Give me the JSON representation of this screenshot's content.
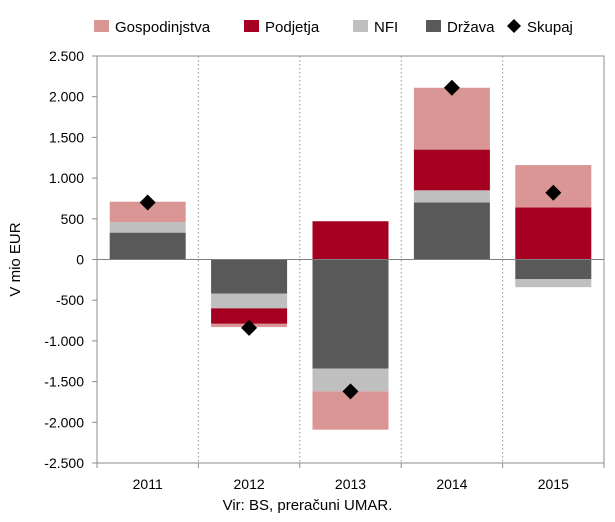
{
  "chart_data": {
    "type": "bar",
    "stacked": true,
    "categories": [
      "2011",
      "2012",
      "2013",
      "2014",
      "2015"
    ],
    "series": [
      {
        "name": "Država",
        "color": "#595959",
        "values": [
          330,
          -420,
          -1340,
          700,
          -240
        ]
      },
      {
        "name": "NFI",
        "color": "#bfbfbf",
        "values": [
          130,
          -180,
          -280,
          150,
          -100
        ]
      },
      {
        "name": "Podjetja",
        "color": "#a50021",
        "values": [
          0,
          -190,
          470,
          500,
          640
        ]
      },
      {
        "name": "Gospodinjstva",
        "color": "#da9694",
        "values": [
          250,
          -40,
          -470,
          760,
          520
        ]
      }
    ],
    "total": {
      "name": "Skupaj",
      "marker": "diamond",
      "color": "#000000",
      "values": [
        700,
        -840,
        -1620,
        2110,
        820
      ]
    },
    "legend_order": [
      "Gospodinjstva",
      "Podjetja",
      "NFI",
      "Država",
      "Skupaj"
    ],
    "legend_position": "top",
    "ylabel": "V mio EUR",
    "ylim": [
      -2500,
      2500
    ],
    "ytick_step": 500,
    "ytick_labels": [
      "-2.500",
      "-2.000",
      "-1.500",
      "-1.000",
      "-500",
      "0",
      "500",
      "1.000",
      "1.500",
      "2.000",
      "2.500"
    ],
    "grid": "vertical dotted between categories",
    "source": "Vir: BS, preračuni UMAR."
  }
}
